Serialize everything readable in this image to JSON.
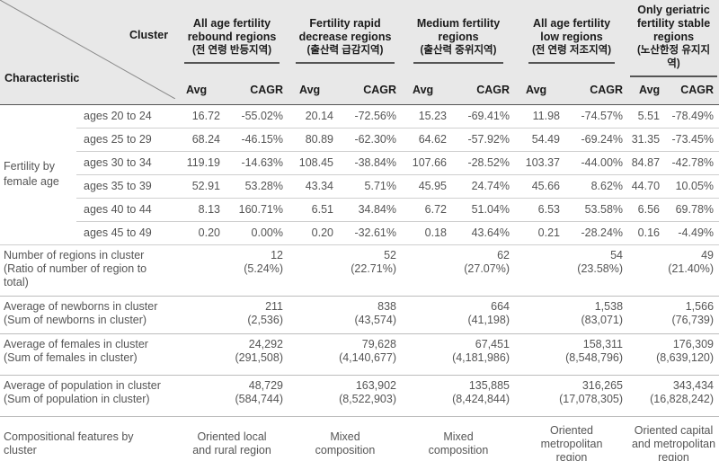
{
  "header": {
    "cluster_label": "Cluster",
    "characteristic_label": "Characteristic",
    "avg_label": "Avg",
    "cagr_label": "CAGR",
    "clusters": [
      {
        "line1": "All age fertility",
        "line2": "rebound regions",
        "ko": "(전 연령 반등지역)"
      },
      {
        "line1": "Fertility rapid",
        "line2": "decrease regions",
        "ko": "(출산력 급감지역)"
      },
      {
        "line1": "Medium fertility",
        "line2": "regions",
        "ko": "(출산력 중위지역)"
      },
      {
        "line1": "All age fertility",
        "line2": "low regions",
        "ko": "(전 연령 저조지역)"
      },
      {
        "line1": "Only geriatric",
        "line2": "fertility stable",
        "line3": "regions",
        "ko": "(노산한정 유지지역)"
      }
    ]
  },
  "fertility": {
    "category_line1": "Fertility by",
    "category_line2": "female age",
    "rows": [
      {
        "age": "ages 20 to 24",
        "values": [
          "16.72",
          "-55.02%",
          "20.14",
          "-72.56%",
          "15.23",
          "-69.41%",
          "11.98",
          "-74.57%",
          "5.51",
          "-78.49%"
        ]
      },
      {
        "age": "ages 25 to 29",
        "values": [
          "68.24",
          "-46.15%",
          "80.89",
          "-62.30%",
          "64.62",
          "-57.92%",
          "54.49",
          "-69.24%",
          "31.35",
          "-73.45%"
        ]
      },
      {
        "age": "ages 30 to 34",
        "values": [
          "119.19",
          "-14.63%",
          "108.45",
          "-38.84%",
          "107.66",
          "-28.52%",
          "103.37",
          "-44.00%",
          "84.87",
          "-42.78%"
        ]
      },
      {
        "age": "ages 35 to 39",
        "values": [
          "52.91",
          "53.28%",
          "43.34",
          "5.71%",
          "45.95",
          "24.74%",
          "45.66",
          "8.62%",
          "44.70",
          "10.05%"
        ]
      },
      {
        "age": "ages 40 to 44",
        "values": [
          "8.13",
          "160.71%",
          "6.51",
          "34.84%",
          "6.72",
          "51.04%",
          "6.53",
          "53.58%",
          "6.56",
          "69.78%"
        ]
      },
      {
        "age": "ages 45 to 49",
        "values": [
          "0.20",
          "0.00%",
          "0.20",
          "-32.61%",
          "0.18",
          "43.64%",
          "0.21",
          "-28.24%",
          "0.16",
          "-4.49%"
        ]
      }
    ]
  },
  "regions": {
    "label1": "Number of regions in cluster",
    "label2": "(Ratio of number of region to",
    "label3": "total)",
    "values": [
      {
        "a": "12",
        "b": "(5.24%)"
      },
      {
        "a": "52",
        "b": "(22.71%)"
      },
      {
        "a": "62",
        "b": "(27.07%)"
      },
      {
        "a": "54",
        "b": "(23.58%)"
      },
      {
        "a": "49",
        "b": "(21.40%)"
      }
    ]
  },
  "newborns": {
    "label1": "Average of newborns in cluster",
    "label2": "(Sum of newborns in cluster)",
    "values": [
      {
        "a": "211",
        "b": "(2,536)"
      },
      {
        "a": "838",
        "b": "(43,574)"
      },
      {
        "a": "664",
        "b": "(41,198)"
      },
      {
        "a": "1,538",
        "b": "(83,071)"
      },
      {
        "a": "1,566",
        "b": "(76,739)"
      }
    ]
  },
  "females": {
    "label1": "Average of females in cluster",
    "label2": "(Sum of females in cluster)",
    "values": [
      {
        "a": "24,292",
        "b": "(291,508)"
      },
      {
        "a": "79,628",
        "b": "(4,140,677)"
      },
      {
        "a": "67,451",
        "b": "(4,181,986)"
      },
      {
        "a": "158,311",
        "b": "(8,548,796)"
      },
      {
        "a": "176,309",
        "b": "(8,639,120)"
      }
    ]
  },
  "population": {
    "label1": "Average of population in cluster",
    "label2": "(Sum of population in cluster)",
    "values": [
      {
        "a": "48,729",
        "b": "(584,744)"
      },
      {
        "a": "163,902",
        "b": "(8,522,903)"
      },
      {
        "a": "135,885",
        "b": "(8,424,844)"
      },
      {
        "a": "316,265",
        "b": "(17,078,305)"
      },
      {
        "a": "343,434",
        "b": "(16,828,242)"
      }
    ]
  },
  "features": {
    "label1": "Compositional features by",
    "label2": "cluster",
    "values": [
      {
        "l1": "Oriented local",
        "l2": "and rural region"
      },
      {
        "l1": "Mixed",
        "l2": "composition"
      },
      {
        "l1": "Mixed",
        "l2": "composition"
      },
      {
        "l1": "Oriented",
        "l2": "metropolitan",
        "l3": "region"
      },
      {
        "l1": "Oriented capital",
        "l2": "and metropolitan",
        "l3": "region"
      }
    ]
  }
}
